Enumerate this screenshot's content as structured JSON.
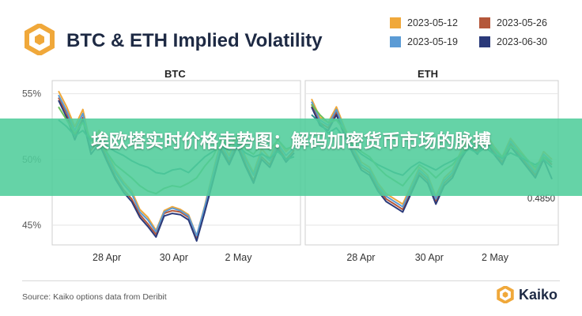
{
  "header": {
    "title": "BTC & ETH Implied Volatility",
    "logo_icon": "kaiko-hexagon-logo-icon"
  },
  "legend": [
    {
      "label": "2023-05-12",
      "color": "#f0a83a"
    },
    {
      "label": "2023-05-26",
      "color": "#b4573a"
    },
    {
      "label": "2023-05-19",
      "color": "#5b9bd5"
    },
    {
      "label": "2023-06-30",
      "color": "#2b3a7a"
    }
  ],
  "footer": {
    "source": "Source: Kaiko options data from Deribit",
    "brand": "Kaiko"
  },
  "banner": {
    "text": "埃欧塔实时价格走势图：解码加密货币市场的脉搏"
  },
  "colors": {
    "teal_line": "#2a8f8a",
    "green_line": "#6bbf59",
    "banner": "#50cd9b"
  },
  "chart_data": [
    {
      "type": "line",
      "title": "BTC",
      "x_ticks": [
        "28 Apr",
        "30 Apr",
        "2 May"
      ],
      "y_ticks": [
        "55%",
        "50%",
        "45%"
      ],
      "ylim": [
        43.5,
        56
      ],
      "grid": true,
      "series": [
        {
          "color": "#f0a83a",
          "values": [
            55.2,
            54.0,
            52.5,
            53.8,
            51.0,
            52.2,
            50.5,
            49.2,
            48.3,
            47.6,
            46.2,
            45.6,
            44.6,
            46.1,
            46.4,
            46.2,
            45.8,
            44.2,
            46.5,
            49.0,
            51.5,
            50.3,
            51.8,
            50.2,
            49.0,
            50.8,
            50.1,
            51.5,
            50.6,
            51.2
          ]
        },
        {
          "color": "#b4573a",
          "values": [
            54.7,
            53.5,
            51.8,
            53.2,
            50.7,
            51.5,
            50.0,
            48.7,
            47.7,
            47.0,
            45.8,
            45.1,
            44.3,
            45.9,
            46.1,
            46.0,
            45.6,
            44.0,
            46.2,
            48.5,
            50.9,
            49.8,
            51.2,
            49.7,
            48.4,
            50.2,
            49.6,
            51.0,
            50.0,
            50.7
          ]
        },
        {
          "color": "#5b9bd5",
          "values": [
            54.9,
            53.7,
            52.2,
            53.5,
            50.9,
            51.8,
            50.3,
            49.0,
            48.1,
            47.4,
            46.0,
            45.4,
            44.5,
            46.0,
            46.3,
            46.1,
            45.7,
            44.2,
            46.4,
            48.8,
            51.2,
            50.0,
            51.5,
            50.0,
            48.8,
            50.5,
            49.9,
            51.2,
            50.3,
            50.9
          ]
        },
        {
          "color": "#2b3a7a",
          "values": [
            54.5,
            53.2,
            51.5,
            53.0,
            50.4,
            51.2,
            49.8,
            48.5,
            47.5,
            46.8,
            45.6,
            44.9,
            44.1,
            45.7,
            45.9,
            45.8,
            45.4,
            43.8,
            46.0,
            48.3,
            50.7,
            49.6,
            51.0,
            49.5,
            48.2,
            50.0,
            49.4,
            50.8,
            49.8,
            50.5
          ]
        },
        {
          "color": "#2a8f8a",
          "values": [
            53.0,
            52.5,
            51.8,
            52.2,
            51.4,
            51.7,
            51.0,
            50.6,
            50.3,
            49.9,
            49.6,
            49.4,
            49.0,
            48.9,
            49.2,
            49.3,
            49.0,
            49.6,
            50.2,
            50.6,
            51.0,
            50.7,
            51.1,
            50.5,
            50.2,
            50.4,
            50.1,
            50.6,
            50.0,
            50.2
          ]
        },
        {
          "color": "#6bbf59",
          "values": [
            54.0,
            53.0,
            52.0,
            52.8,
            51.5,
            51.2,
            50.5,
            49.6,
            49.1,
            48.6,
            48.0,
            47.6,
            47.4,
            47.8,
            48.0,
            47.9,
            48.2,
            48.6,
            49.5,
            50.2,
            51.5,
            51.0,
            51.8,
            50.8,
            50.4,
            51.2,
            50.7,
            51.5,
            50.8,
            51.0
          ]
        }
      ]
    },
    {
      "type": "line",
      "title": "ETH",
      "x_ticks": [
        "28 Apr",
        "30 Apr",
        "2 May"
      ],
      "annotations": [
        "0.4850"
      ],
      "ylim": [
        43.5,
        56
      ],
      "grid": true,
      "series": [
        {
          "color": "#f0a83a",
          "values": [
            54.6,
            53.2,
            52.8,
            54.0,
            52.4,
            51.0,
            49.8,
            49.4,
            48.2,
            47.4,
            47.0,
            46.6,
            48.0,
            49.4,
            48.8,
            47.2,
            48.6,
            49.2,
            50.6,
            51.6,
            51.0,
            52.0,
            51.0,
            50.2,
            51.6,
            50.8,
            50.0,
            49.2,
            50.6,
            50.0
          ]
        },
        {
          "color": "#b4573a",
          "values": [
            54.2,
            52.8,
            52.4,
            53.6,
            52.0,
            50.6,
            49.4,
            49.0,
            47.8,
            47.0,
            46.6,
            46.2,
            47.6,
            49.0,
            48.4,
            46.8,
            48.2,
            48.8,
            50.2,
            51.2,
            50.6,
            51.6,
            50.6,
            49.8,
            51.2,
            50.4,
            49.6,
            48.8,
            50.2,
            49.6
          ]
        },
        {
          "color": "#5b9bd5",
          "values": [
            54.4,
            53.0,
            52.6,
            53.8,
            52.2,
            50.8,
            49.6,
            49.2,
            48.0,
            47.2,
            46.8,
            46.4,
            47.8,
            49.2,
            48.6,
            47.0,
            48.4,
            49.0,
            50.4,
            51.4,
            50.8,
            51.8,
            50.8,
            50.0,
            51.4,
            50.6,
            49.8,
            49.0,
            50.4,
            49.8
          ]
        },
        {
          "color": "#2b3a7a",
          "values": [
            54.0,
            52.6,
            52.2,
            53.4,
            51.8,
            50.4,
            49.2,
            48.8,
            47.6,
            46.8,
            46.4,
            46.0,
            47.4,
            48.8,
            48.2,
            46.6,
            48.0,
            48.6,
            50.0,
            51.0,
            50.4,
            51.4,
            50.4,
            49.6,
            51.0,
            50.2,
            49.4,
            48.6,
            50.0,
            48.5
          ]
        },
        {
          "color": "#2a8f8a",
          "values": [
            53.4,
            52.8,
            52.0,
            52.4,
            51.6,
            51.0,
            50.4,
            50.0,
            49.6,
            49.3,
            49.0,
            48.8,
            49.4,
            49.8,
            49.5,
            49.2,
            49.6,
            49.9,
            50.3,
            50.8,
            50.5,
            50.9,
            50.4,
            50.1,
            50.5,
            50.2,
            49.9,
            49.6,
            50.0,
            49.4
          ]
        },
        {
          "color": "#6bbf59",
          "values": [
            54.2,
            53.4,
            52.8,
            53.0,
            52.2,
            51.4,
            50.6,
            50.2,
            49.4,
            48.8,
            48.4,
            48.0,
            48.8,
            49.6,
            49.2,
            48.6,
            49.2,
            49.6,
            50.4,
            51.2,
            50.8,
            51.4,
            50.8,
            50.2,
            51.0,
            50.6,
            50.0,
            49.4,
            50.2,
            49.8
          ]
        }
      ]
    }
  ]
}
